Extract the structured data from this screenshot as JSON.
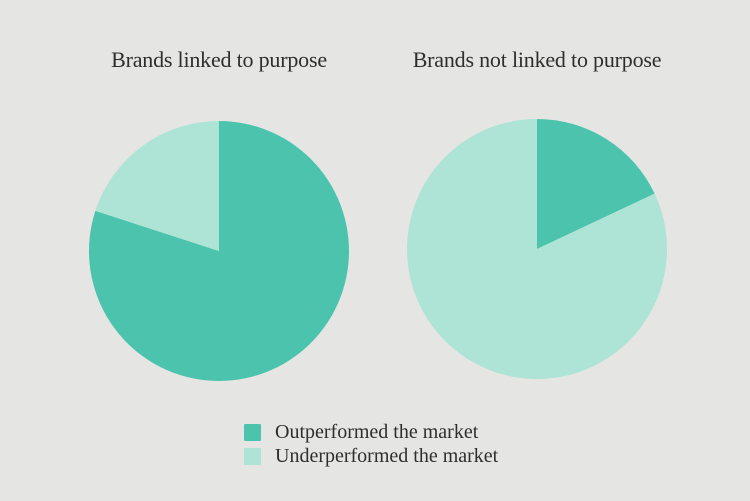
{
  "colors": {
    "outperformed": "#4CC4AD",
    "underperformed": "#ADE4D6",
    "background": "#E5E5E3",
    "text": "#2E2E2E"
  },
  "legend": {
    "position": "bottom",
    "items": [
      {
        "label": "Outperformed the market",
        "color": "outperformed"
      },
      {
        "label": "Underperformed the market",
        "color": "underperformed"
      }
    ]
  },
  "chart_data": [
    {
      "type": "pie",
      "title": "Brands linked to purpose",
      "start_angle": "top",
      "direction": "clockwise",
      "slices": [
        {
          "label": "Outperformed the market",
          "value_pct": 80,
          "color": "outperformed"
        },
        {
          "label": "Underperformed the market",
          "value_pct": 20,
          "color": "underperformed"
        }
      ]
    },
    {
      "type": "pie",
      "title": "Brands not linked to purpose",
      "start_angle": "top",
      "direction": "clockwise",
      "slices": [
        {
          "label": "Outperformed the market",
          "value_pct": 18,
          "color": "outperformed"
        },
        {
          "label": "Underperformed the market",
          "value_pct": 82,
          "color": "underperformed"
        }
      ]
    }
  ]
}
